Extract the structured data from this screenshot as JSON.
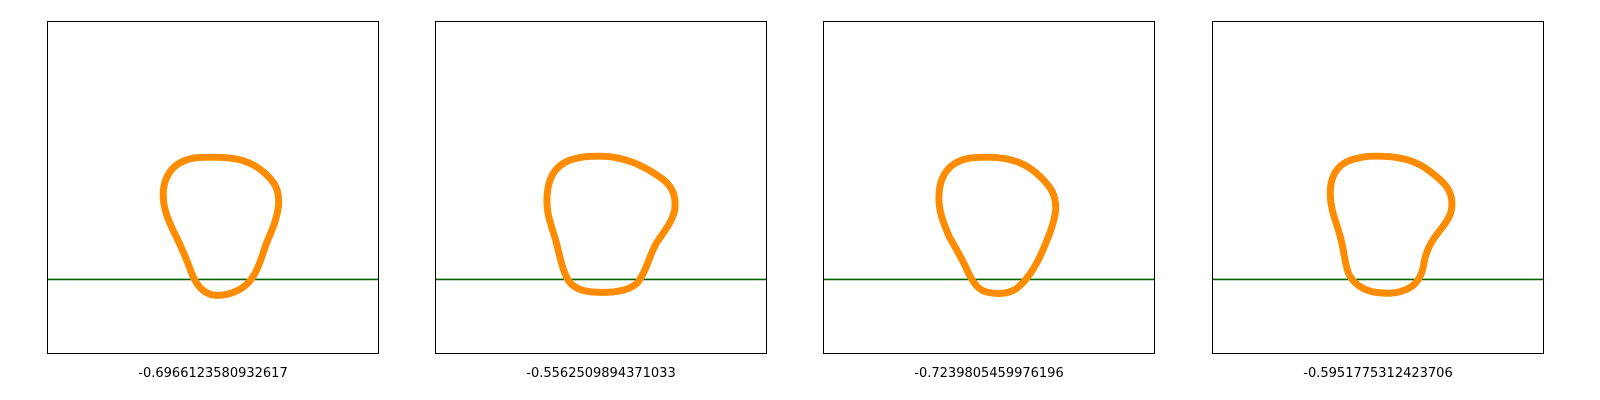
{
  "colors": {
    "contour": "#ff8c00",
    "baseline": "#006400",
    "frame": "#000000",
    "background": "#ffffff"
  },
  "panels": [
    {
      "caption": "-0.6966123580932617"
    },
    {
      "caption": "-0.5562509894371033"
    },
    {
      "caption": "-0.7239805459976196"
    },
    {
      "caption": "-0.5951775312423706"
    }
  ]
}
